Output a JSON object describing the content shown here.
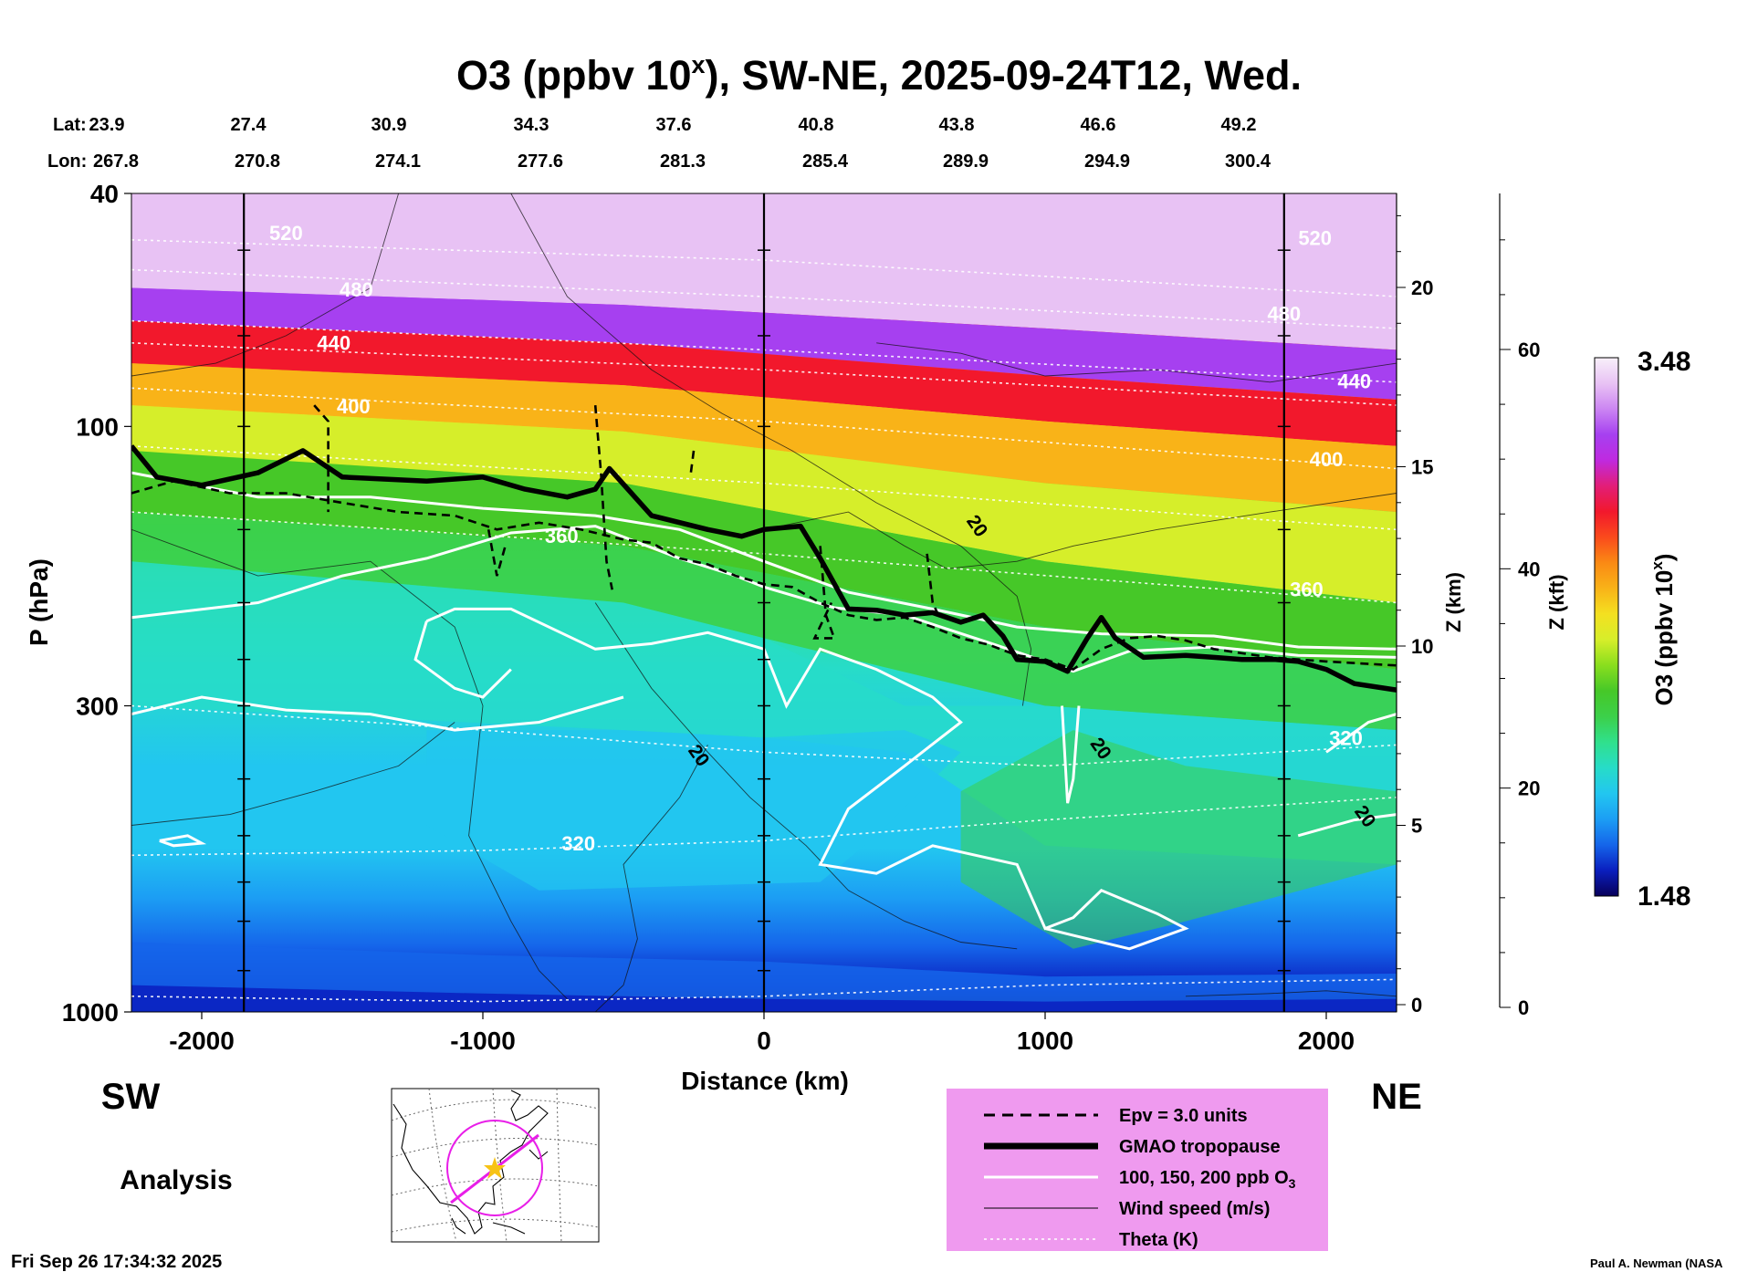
{
  "chart_data": {
    "type": "cross-section",
    "title_prefix": "O3 (ppbv 10",
    "title_superscript": "x",
    "title_suffix": "), SW-NE, 2025-09-24T12, Wed.",
    "xlabel": "Distance (km)",
    "ylabel": "P (hPa)",
    "z_km_label": "Z (km)",
    "z_kft_label": "Z (kft)",
    "colorbar_label": "O3 (ppbv 10",
    "colorbar_label_sup": "x",
    "colorbar_label_close": ")",
    "colorbar_range": [
      1.48,
      3.48
    ],
    "colorbar_max_label": "3.48",
    "colorbar_min_label": "1.48",
    "xlim": [
      -2250,
      2250
    ],
    "ylim_hpa": [
      1000,
      40
    ],
    "x_ticks": [
      {
        "value": -2000,
        "label": "-2000"
      },
      {
        "value": -1000,
        "label": "-1000"
      },
      {
        "value": 0,
        "label": "0"
      },
      {
        "value": 1000,
        "label": "1000"
      },
      {
        "value": 2000,
        "label": "2000"
      }
    ],
    "p_ticks": [
      {
        "value": 40,
        "label": "40"
      },
      {
        "value": 100,
        "label": "100"
      },
      {
        "value": 300,
        "label": "300"
      },
      {
        "value": 1000,
        "label": "1000"
      }
    ],
    "z_km_ticks": [
      {
        "value": 0,
        "label": "0"
      },
      {
        "value": 5,
        "label": "5"
      },
      {
        "value": 10,
        "label": "10"
      },
      {
        "value": 15,
        "label": "15"
      },
      {
        "value": 20,
        "label": "20"
      }
    ],
    "z_kft_ticks": [
      {
        "value": 0,
        "label": "0"
      },
      {
        "value": 20,
        "label": "20"
      },
      {
        "value": 40,
        "label": "40"
      },
      {
        "value": 60,
        "label": "60"
      }
    ],
    "lat_label": "Lat:",
    "lon_label": "Lon:",
    "lat_values": [
      "23.9",
      "27.4",
      "30.9",
      "34.3",
      "37.6",
      "40.8",
      "43.8",
      "46.6",
      "49.2"
    ],
    "lon_values": [
      "267.8",
      "270.8",
      "274.1",
      "277.6",
      "281.3",
      "285.4",
      "289.9",
      "294.9",
      "300.4"
    ],
    "theta_labels": [
      {
        "label": "520",
        "x": -1700,
        "p": 48
      },
      {
        "label": "480",
        "x": -1450,
        "p": 60
      },
      {
        "label": "440",
        "x": -1530,
        "p": 74
      },
      {
        "label": "400",
        "x": -1460,
        "p": 95
      },
      {
        "label": "360",
        "x": -720,
        "p": 158
      },
      {
        "label": "320",
        "x": -660,
        "p": 530
      },
      {
        "label": "520",
        "x": 1960,
        "p": 49
      },
      {
        "label": "480",
        "x": 1850,
        "p": 66
      },
      {
        "label": "440",
        "x": 2100,
        "p": 86
      },
      {
        "label": "400",
        "x": 2000,
        "p": 117
      },
      {
        "label": "360",
        "x": 1930,
        "p": 195
      },
      {
        "label": "320",
        "x": 2070,
        "p": 350
      }
    ],
    "wind_labels": [
      {
        "label": "20",
        "x": 740,
        "p": 150
      },
      {
        "label": "20",
        "x": -250,
        "p": 370
      },
      {
        "label": "20",
        "x": 1180,
        "p": 360
      },
      {
        "label": "20",
        "x": 2120,
        "p": 470
      }
    ],
    "tropopause_gmao": [
      [
        -2250,
        108
      ],
      [
        -2160,
        122
      ],
      [
        -2000,
        126
      ],
      [
        -1800,
        120
      ],
      [
        -1640,
        110
      ],
      [
        -1500,
        122
      ],
      [
        -1200,
        124
      ],
      [
        -1000,
        122
      ],
      [
        -850,
        128
      ],
      [
        -700,
        132
      ],
      [
        -600,
        128
      ],
      [
        -550,
        118
      ],
      [
        -400,
        142
      ],
      [
        -200,
        150
      ],
      [
        -80,
        154
      ],
      [
        0,
        150
      ],
      [
        130,
        148
      ],
      [
        200,
        168
      ],
      [
        300,
        205
      ],
      [
        400,
        206
      ],
      [
        500,
        210
      ],
      [
        600,
        208
      ],
      [
        700,
        216
      ],
      [
        780,
        210
      ],
      [
        850,
        228
      ],
      [
        900,
        250
      ],
      [
        1000,
        252
      ],
      [
        1080,
        262
      ],
      [
        1150,
        230
      ],
      [
        1200,
        212
      ],
      [
        1250,
        230
      ],
      [
        1350,
        248
      ],
      [
        1500,
        246
      ],
      [
        1600,
        248
      ],
      [
        1700,
        250
      ],
      [
        1820,
        250
      ],
      [
        1900,
        252
      ],
      [
        2000,
        260
      ],
      [
        2100,
        275
      ],
      [
        2250,
        282
      ]
    ],
    "o3_100ppb_contour": [
      [
        -2250,
        212
      ],
      [
        -1800,
        200
      ],
      [
        -1500,
        180
      ],
      [
        -1200,
        168
      ],
      [
        -900,
        152
      ],
      [
        -600,
        148
      ],
      [
        -300,
        168
      ],
      [
        -100,
        180
      ],
      [
        0,
        188
      ],
      [
        250,
        204
      ],
      [
        500,
        210
      ],
      [
        800,
        234
      ],
      [
        1000,
        252
      ],
      [
        1100,
        262
      ],
      [
        1300,
        242
      ],
      [
        1600,
        238
      ],
      [
        1900,
        246
      ],
      [
        2250,
        248
      ]
    ],
    "series_legend": [
      {
        "name": "Epv = 3.0 units",
        "style": "dashed-black"
      },
      {
        "name": "GMAO tropopause",
        "style": "thick-black"
      },
      {
        "name": "100, 150, 200 ppb O",
        "sub": "3",
        "style": "white"
      },
      {
        "name": "Wind speed (m/s)",
        "style": "thin-black"
      },
      {
        "name": "Theta (K)",
        "style": "dotted-white"
      }
    ],
    "colors": {
      "legend_bg": "#ef9aef",
      "colormap": [
        "#08005a",
        "#0a1fbf",
        "#1565ea",
        "#1c9ef4",
        "#22c6f0",
        "#27dcc8",
        "#30e08c",
        "#3cd04a",
        "#46c828",
        "#8ade1e",
        "#d6ee2a",
        "#f4e020",
        "#f9b318",
        "#fa8a14",
        "#fa4a1c",
        "#f2182c",
        "#e21e78",
        "#bf2ae0",
        "#a640f0",
        "#cc86f2",
        "#e8c2f4",
        "#f8f0fa"
      ]
    }
  },
  "labels": {
    "sw": "SW",
    "ne": "NE",
    "analysis": "Analysis",
    "timestamp": "Fri Sep 26 17:34:32 2025",
    "credit": "Paul A. Newman (NASA"
  }
}
